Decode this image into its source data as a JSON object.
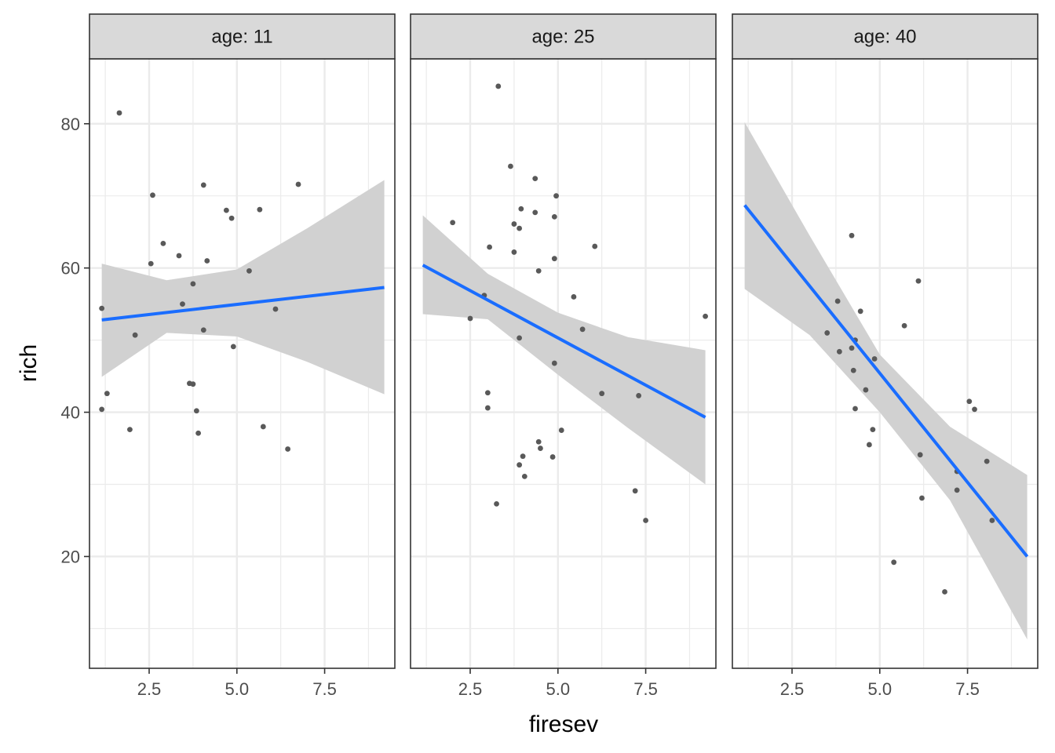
{
  "chart_data": {
    "type": "scatter",
    "facet_by": "age",
    "xlabel": "firesev",
    "ylabel": "rich",
    "xlim": [
      0.8,
      9.5
    ],
    "ylim": [
      4.5,
      89
    ],
    "x_ticks": [
      "2.5",
      "5.0",
      "7.5"
    ],
    "x_tick_values": [
      2.5,
      5.0,
      7.5
    ],
    "y_ticks": [
      "20",
      "40",
      "60",
      "80"
    ],
    "y_tick_values": [
      20,
      40,
      60,
      80
    ],
    "grid": true,
    "colors": {
      "point": "#595959",
      "smooth_line": "#1a6dff",
      "confidence_band": "#d1d1d1",
      "strip_fill": "#d9d9d9",
      "grid": "#ebebeb",
      "panel_border": "#333333"
    },
    "panels": [
      {
        "label": "age: 11",
        "points": [
          [
            1.65,
            81.5
          ],
          [
            1.15,
            54.4
          ],
          [
            1.3,
            42.6
          ],
          [
            1.15,
            40.4
          ],
          [
            1.95,
            37.6
          ],
          [
            2.1,
            50.7
          ],
          [
            2.6,
            70.1
          ],
          [
            2.55,
            60.6
          ],
          [
            2.9,
            63.4
          ],
          [
            3.35,
            61.7
          ],
          [
            3.45,
            55.0
          ],
          [
            3.65,
            44.0
          ],
          [
            3.75,
            43.9
          ],
          [
            3.75,
            57.8
          ],
          [
            3.85,
            40.2
          ],
          [
            3.9,
            37.1
          ],
          [
            4.05,
            71.5
          ],
          [
            4.05,
            51.4
          ],
          [
            4.15,
            61.0
          ],
          [
            4.7,
            68.0
          ],
          [
            4.85,
            66.9
          ],
          [
            4.9,
            49.1
          ],
          [
            5.35,
            59.6
          ],
          [
            5.65,
            68.1
          ],
          [
            5.75,
            38.0
          ],
          [
            6.1,
            54.3
          ],
          [
            6.45,
            34.9
          ],
          [
            6.75,
            71.6
          ]
        ],
        "fit": {
          "x": [
            1.15,
            9.2
          ],
          "y": [
            52.8,
            57.3
          ]
        },
        "band": {
          "x": [
            1.15,
            3.0,
            5.0,
            7.0,
            9.2
          ],
          "lower": [
            44.9,
            51.0,
            50.5,
            47.0,
            42.5
          ],
          "upper": [
            60.6,
            58.3,
            59.8,
            65.5,
            72.2
          ]
        }
      },
      {
        "label": "age: 25",
        "points": [
          [
            3.3,
            85.2
          ],
          [
            3.65,
            74.1
          ],
          [
            4.35,
            72.4
          ],
          [
            4.95,
            70.0
          ],
          [
            2.0,
            66.3
          ],
          [
            3.05,
            62.9
          ],
          [
            3.75,
            66.1
          ],
          [
            3.9,
            65.5
          ],
          [
            3.95,
            68.2
          ],
          [
            4.35,
            67.7
          ],
          [
            4.9,
            67.1
          ],
          [
            4.9,
            61.3
          ],
          [
            3.75,
            62.2
          ],
          [
            4.45,
            59.6
          ],
          [
            6.05,
            63.0
          ],
          [
            2.9,
            56.2
          ],
          [
            5.45,
            56.0
          ],
          [
            2.5,
            53.0
          ],
          [
            5.7,
            51.5
          ],
          [
            3.9,
            50.3
          ],
          [
            4.9,
            46.8
          ],
          [
            3.0,
            42.7
          ],
          [
            3.0,
            40.6
          ],
          [
            6.25,
            42.6
          ],
          [
            7.3,
            42.3
          ],
          [
            5.1,
            37.5
          ],
          [
            4.45,
            35.9
          ],
          [
            4.5,
            35.0
          ],
          [
            4.0,
            33.9
          ],
          [
            3.9,
            32.7
          ],
          [
            4.85,
            33.8
          ],
          [
            4.05,
            31.1
          ],
          [
            3.25,
            27.3
          ],
          [
            7.2,
            29.1
          ],
          [
            7.5,
            25.0
          ],
          [
            9.2,
            53.3
          ]
        ],
        "fit": {
          "x": [
            1.15,
            9.2
          ],
          "y": [
            60.4,
            39.3
          ]
        },
        "band": {
          "x": [
            1.15,
            3.0,
            5.0,
            7.0,
            9.2
          ],
          "lower": [
            53.6,
            52.9,
            45.2,
            37.8,
            30.0
          ],
          "upper": [
            67.3,
            59.2,
            53.8,
            50.4,
            48.6
          ]
        }
      },
      {
        "label": "age: 40",
        "points": [
          [
            4.2,
            64.5
          ],
          [
            6.1,
            58.2
          ],
          [
            3.8,
            55.4
          ],
          [
            4.45,
            54.0
          ],
          [
            5.7,
            52.0
          ],
          [
            3.5,
            51.0
          ],
          [
            3.85,
            48.4
          ],
          [
            4.2,
            48.9
          ],
          [
            4.3,
            50.0
          ],
          [
            4.85,
            47.4
          ],
          [
            4.25,
            45.8
          ],
          [
            4.6,
            43.1
          ],
          [
            4.3,
            40.5
          ],
          [
            4.8,
            37.6
          ],
          [
            4.7,
            35.5
          ],
          [
            7.55,
            41.5
          ],
          [
            7.7,
            40.4
          ],
          [
            6.15,
            34.1
          ],
          [
            8.05,
            33.2
          ],
          [
            7.2,
            31.8
          ],
          [
            6.2,
            28.1
          ],
          [
            7.2,
            29.2
          ],
          [
            8.2,
            25.0
          ],
          [
            5.4,
            19.2
          ],
          [
            6.85,
            15.1
          ]
        ],
        "fit": {
          "x": [
            1.15,
            9.2
          ],
          "y": [
            68.7,
            20.0
          ]
        },
        "band": {
          "x": [
            1.15,
            3.0,
            5.0,
            7.0,
            9.2
          ],
          "lower": [
            57.1,
            50.7,
            40.0,
            27.8,
            8.5
          ],
          "upper": [
            80.2,
            64.5,
            48.0,
            38.0,
            31.3
          ]
        }
      }
    ]
  }
}
